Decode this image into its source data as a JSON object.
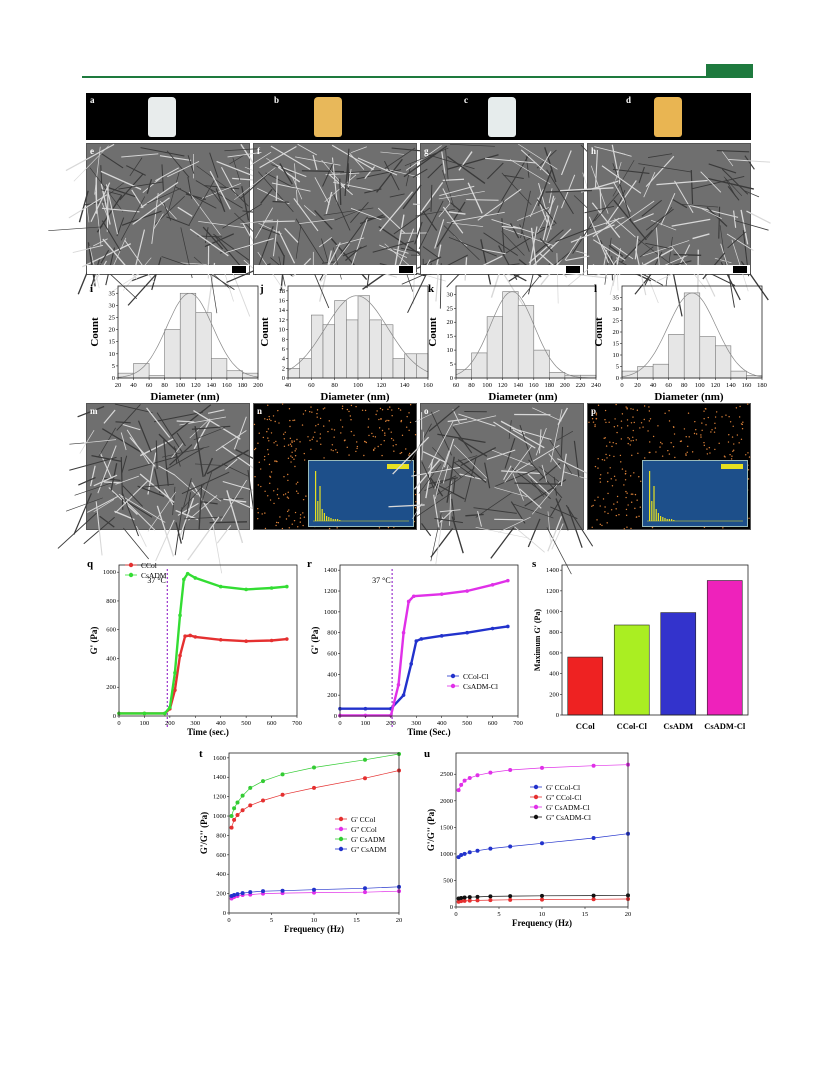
{
  "header": {
    "accent_color": "#1e7a3e"
  },
  "photos": {
    "labels": [
      "a",
      "b",
      "c",
      "d"
    ],
    "colors": [
      "#e8ecec",
      "#e8b85a",
      "#e6ecec",
      "#e9b552"
    ]
  },
  "sem": {
    "labels": [
      "e",
      "f",
      "g",
      "h"
    ]
  },
  "histograms": [
    {
      "label": "i",
      "ylabel": "Count",
      "xlabel": "Diameter (nm)",
      "xticks": [
        "20",
        "40",
        "60",
        "80",
        "100",
        "120",
        "140",
        "160",
        "180",
        "200"
      ],
      "yticks": [
        "0",
        "5",
        "10",
        "15",
        "20",
        "25",
        "30",
        "35"
      ]
    },
    {
      "label": "j",
      "ylabel": "Count",
      "xlabel": "Diameter (nm)",
      "xticks": [
        "40",
        "60",
        "80",
        "100",
        "120",
        "140",
        "160"
      ],
      "yticks": [
        "0",
        "2",
        "4",
        "6",
        "8",
        "10",
        "12",
        "14",
        "16",
        "18"
      ]
    },
    {
      "label": "k",
      "ylabel": "Count",
      "xlabel": "Diameter (nm)",
      "xticks": [
        "60",
        "80",
        "100",
        "120",
        "140",
        "160",
        "180",
        "200",
        "220",
        "240"
      ],
      "yticks": [
        "0",
        "5",
        "10",
        "15",
        "20",
        "25",
        "30"
      ]
    },
    {
      "label": "l",
      "ylabel": "Count",
      "xlabel": "Diameter (nm)",
      "xticks": [
        "0",
        "20",
        "40",
        "60",
        "80",
        "100",
        "120",
        "140",
        "160",
        "180"
      ],
      "yticks": [
        "0",
        "5",
        "10",
        "15",
        "20",
        "25",
        "30",
        "35"
      ]
    }
  ],
  "eds": {
    "labels": [
      "m",
      "n",
      "o",
      "p"
    ]
  },
  "panel_q": {
    "label": "q",
    "ylabel": "G' (Pa)",
    "xlabel": "Time (sec.)",
    "annotation": "37 °C",
    "xticks": [
      "0",
      "100",
      "200",
      "300",
      "400",
      "500",
      "600",
      "700"
    ],
    "yticks": [
      "0",
      "200",
      "400",
      "600",
      "800",
      "1000"
    ],
    "legend": [
      "CCol",
      "CsADM"
    ]
  },
  "panel_r": {
    "label": "r",
    "ylabel": "G' (Pa)",
    "xlabel": "Time (Sec.)",
    "annotation": "37 °C",
    "xticks": [
      "0",
      "100",
      "200",
      "300",
      "400",
      "500",
      "600",
      "700"
    ],
    "yticks": [
      "0",
      "200",
      "400",
      "600",
      "800",
      "1000",
      "1200",
      "1400"
    ],
    "legend": [
      "CCol-Cl",
      "CsADM-Cl"
    ]
  },
  "panel_s": {
    "label": "s",
    "ylabel": "Maximum G' (Pa)",
    "yticks": [
      "0",
      "200",
      "400",
      "600",
      "800",
      "1000",
      "1200",
      "1400"
    ]
  },
  "panel_t": {
    "label": "t",
    "ylabel": "G'/G'' (Pa)",
    "xlabel": "Frequency (Hz)",
    "xticks": [
      "0",
      "5",
      "10",
      "15",
      "20"
    ],
    "yticks": [
      "0",
      "200",
      "400",
      "600",
      "800",
      "1000",
      "1200",
      "1400",
      "1600"
    ],
    "legend": [
      "G' CCol",
      "G'' CCol",
      "G' CsADM",
      "G'' CsADM"
    ]
  },
  "panel_u": {
    "label": "u",
    "ylabel": "G'/G'' (Pa)",
    "xlabel": "Frequency (Hz)",
    "xticks": [
      "0",
      "5",
      "10",
      "15",
      "20"
    ],
    "yticks": [
      "0",
      "500",
      "1000",
      "1500",
      "2000",
      "2500"
    ],
    "legend": [
      "G' CCol-Cl",
      "G'' CCol-Cl",
      "G' CsADM-Cl",
      "G'' CsADM-Cl"
    ]
  },
  "chart_data": [
    {
      "type": "bar",
      "panel": "i",
      "categories": [
        "30",
        "50",
        "70",
        "90",
        "110",
        "130",
        "150",
        "170",
        "190"
      ],
      "values": [
        2,
        6,
        1,
        20,
        35,
        27,
        8,
        3,
        2
      ],
      "xlabel": "Diameter (nm)",
      "ylabel": "Count",
      "ylim": [
        0,
        38
      ]
    },
    {
      "type": "bar",
      "panel": "j",
      "categories": [
        "45",
        "55",
        "65",
        "75",
        "85",
        "95",
        "105",
        "115",
        "125",
        "135",
        "145",
        "155"
      ],
      "values": [
        2,
        4,
        13,
        11,
        16,
        12,
        17,
        12,
        11,
        4,
        5,
        5
      ],
      "xlabel": "Diameter (nm)",
      "ylabel": "Count",
      "ylim": [
        0,
        19
      ]
    },
    {
      "type": "bar",
      "panel": "k",
      "categories": [
        "70",
        "90",
        "110",
        "130",
        "150",
        "170",
        "190",
        "210",
        "230"
      ],
      "values": [
        3,
        9,
        22,
        31,
        26,
        10,
        2,
        1,
        1
      ],
      "xlabel": "Diameter (nm)",
      "ylabel": "Count",
      "ylim": [
        0,
        33
      ]
    },
    {
      "type": "bar",
      "panel": "l",
      "categories": [
        "10",
        "30",
        "50",
        "70",
        "90",
        "110",
        "130",
        "150",
        "170"
      ],
      "values": [
        3,
        5,
        6,
        19,
        37,
        18,
        14,
        3,
        1
      ],
      "xlabel": "Diameter (nm)",
      "ylabel": "Count",
      "ylim": [
        0,
        40
      ]
    },
    {
      "type": "line",
      "panel": "q",
      "xlabel": "Time (sec.)",
      "ylabel": "G' (Pa)",
      "xlim": [
        0,
        700
      ],
      "ylim": [
        0,
        1050
      ],
      "series": [
        {
          "name": "CCol",
          "color": "#e53030",
          "x": [
            0,
            100,
            180,
            200,
            220,
            240,
            260,
            280,
            300,
            400,
            500,
            600,
            660
          ],
          "y": [
            18,
            18,
            18,
            50,
            180,
            420,
            555,
            560,
            550,
            530,
            520,
            525,
            535
          ]
        },
        {
          "name": "CsADM",
          "color": "#33dd33",
          "x": [
            0,
            100,
            180,
            200,
            220,
            240,
            255,
            270,
            300,
            400,
            500,
            600,
            660
          ],
          "y": [
            18,
            18,
            18,
            60,
            300,
            700,
            950,
            990,
            960,
            900,
            880,
            890,
            900
          ]
        }
      ]
    },
    {
      "type": "line",
      "panel": "r",
      "xlabel": "Time (Sec.)",
      "ylabel": "G' (Pa)",
      "xlim": [
        0,
        700
      ],
      "ylim": [
        0,
        1450
      ],
      "series": [
        {
          "name": "CCol-Cl",
          "color": "#2232cc",
          "x": [
            0,
            100,
            200,
            250,
            280,
            300,
            320,
            400,
            500,
            600,
            660
          ],
          "y": [
            70,
            70,
            70,
            200,
            500,
            720,
            740,
            770,
            800,
            840,
            860
          ]
        },
        {
          "name": "CsADM-Cl",
          "color": "#e030e8",
          "x": [
            0,
            100,
            200,
            230,
            250,
            270,
            290,
            400,
            500,
            600,
            660
          ],
          "y": [
            5,
            5,
            5,
            300,
            800,
            1100,
            1150,
            1170,
            1200,
            1260,
            1300
          ]
        }
      ]
    },
    {
      "type": "bar",
      "panel": "s",
      "categories": [
        "CCol",
        "CCol-Cl",
        "CsADM",
        "CsADM-Cl"
      ],
      "values": [
        560,
        870,
        990,
        1300
      ],
      "colors": [
        "#ee2222",
        "#aaee22",
        "#3333cc",
        "#ee22bb"
      ],
      "ylabel": "Maximum G' (Pa)",
      "ylim": [
        0,
        1450
      ]
    },
    {
      "type": "line",
      "panel": "t",
      "xlabel": "Frequency (Hz)",
      "ylabel": "G'/G'' (Pa)",
      "xlim": [
        0,
        20
      ],
      "ylim": [
        0,
        1650
      ],
      "series": [
        {
          "name": "G' CCol",
          "color": "#e53030",
          "x": [
            0.3,
            0.6,
            1,
            1.6,
            2.5,
            4,
            6.3,
            10,
            16,
            20
          ],
          "y": [
            880,
            960,
            1010,
            1060,
            1110,
            1160,
            1220,
            1290,
            1390,
            1470
          ]
        },
        {
          "name": "G'' CCol",
          "color": "#e030e8",
          "x": [
            0.3,
            0.6,
            1,
            1.6,
            2.5,
            4,
            6.3,
            10,
            16,
            20
          ],
          "y": [
            150,
            165,
            175,
            185,
            190,
            200,
            205,
            210,
            215,
            225
          ]
        },
        {
          "name": "G' CsADM",
          "color": "#33cc33",
          "x": [
            0.3,
            0.6,
            1,
            1.6,
            2.5,
            4,
            6.3,
            10,
            16,
            20
          ],
          "y": [
            1000,
            1080,
            1140,
            1210,
            1290,
            1360,
            1430,
            1500,
            1580,
            1640
          ]
        },
        {
          "name": "G'' CsADM",
          "color": "#2232cc",
          "x": [
            0.3,
            0.6,
            1,
            1.6,
            2.5,
            4,
            6.3,
            10,
            16,
            20
          ],
          "y": [
            175,
            185,
            195,
            205,
            215,
            225,
            230,
            240,
            255,
            270
          ]
        }
      ]
    },
    {
      "type": "line",
      "panel": "u",
      "xlabel": "Frequency (Hz)",
      "ylabel": "G'/G'' (Pa)",
      "xlim": [
        0,
        20
      ],
      "ylim": [
        0,
        2900
      ],
      "series": [
        {
          "name": "G' CCol-Cl",
          "color": "#2232cc",
          "x": [
            0.3,
            0.6,
            1,
            1.6,
            2.5,
            4,
            6.3,
            10,
            16,
            20
          ],
          "y": [
            940,
            980,
            1000,
            1030,
            1060,
            1100,
            1140,
            1200,
            1300,
            1380
          ]
        },
        {
          "name": "G'' CCol-Cl",
          "color": "#e53030",
          "x": [
            0.3,
            0.6,
            1,
            1.6,
            2.5,
            4,
            6.3,
            10,
            16,
            20
          ],
          "y": [
            100,
            110,
            115,
            120,
            125,
            130,
            135,
            140,
            145,
            150
          ]
        },
        {
          "name": "G' CsADM-Cl",
          "color": "#e030e8",
          "x": [
            0.3,
            0.6,
            1,
            1.6,
            2.5,
            4,
            6.3,
            10,
            16,
            20
          ],
          "y": [
            2200,
            2300,
            2380,
            2430,
            2480,
            2530,
            2580,
            2620,
            2660,
            2680
          ]
        },
        {
          "name": "G'' CsADM-Cl",
          "color": "#111111",
          "x": [
            0.3,
            0.6,
            1,
            1.6,
            2.5,
            4,
            6.3,
            10,
            16,
            20
          ],
          "y": [
            160,
            170,
            180,
            185,
            190,
            200,
            205,
            210,
            215,
            220
          ]
        }
      ]
    }
  ]
}
